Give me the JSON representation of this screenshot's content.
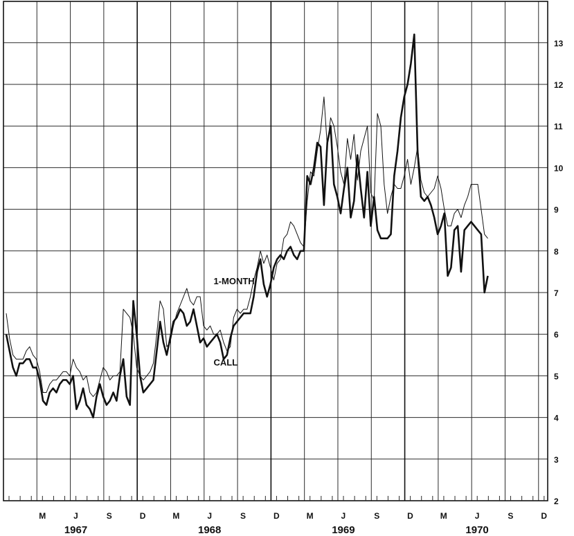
{
  "chart_data": {
    "type": "line",
    "title": "",
    "xlabel": "",
    "ylabel": "",
    "ylim": [
      2,
      13.5
    ],
    "y_ticks": [
      "2",
      "3",
      "4",
      "5",
      "6",
      "7",
      "8",
      "9",
      "10",
      "11",
      "12",
      "13"
    ],
    "x_range_month_index": [
      0,
      46
    ],
    "x_tick_labels": [
      {
        "label": "M",
        "month": 2
      },
      {
        "label": "J",
        "month": 5
      },
      {
        "label": "S",
        "month": 8
      },
      {
        "label": "D",
        "month": 11
      },
      {
        "label": "M",
        "month": 14
      },
      {
        "label": "J",
        "month": 17
      },
      {
        "label": "S",
        "month": 20
      },
      {
        "label": "D",
        "month": 23
      },
      {
        "label": "M",
        "month": 26
      },
      {
        "label": "J",
        "month": 29
      },
      {
        "label": "S",
        "month": 32
      },
      {
        "label": "D",
        "month": 35
      },
      {
        "label": "M",
        "month": 38
      },
      {
        "label": "J",
        "month": 41
      },
      {
        "label": "S",
        "month": 44
      },
      {
        "label": "D",
        "month": 47
      }
    ],
    "year_labels": [
      {
        "label": "1967",
        "month": 5
      },
      {
        "label": "1968",
        "month": 17
      },
      {
        "label": "1969",
        "month": 29
      },
      {
        "label": "1970",
        "month": 41
      }
    ],
    "year_boundaries": [
      12,
      24,
      36
    ],
    "grid": true,
    "annotations": [
      {
        "text": "1-MONTH",
        "month": 18.6,
        "y": 7.2
      },
      {
        "text": "CALL",
        "month": 18.6,
        "y": 5.25
      }
    ],
    "series": [
      {
        "name": "1-MONTH",
        "x": [
          0,
          0.3,
          0.6,
          0.9,
          1.2,
          1.5,
          1.8,
          2.1,
          2.4,
          2.7,
          3.0,
          3.3,
          3.6,
          3.9,
          4.2,
          4.5,
          4.8,
          5.1,
          5.4,
          5.7,
          6.0,
          6.3,
          6.6,
          6.9,
          7.2,
          7.5,
          7.8,
          8.1,
          8.4,
          8.7,
          9.0,
          9.3,
          9.6,
          9.9,
          10.2,
          10.5,
          10.8,
          11.1,
          11.4,
          11.7,
          12.0,
          12.3,
          12.6,
          12.9,
          13.2,
          13.5,
          13.8,
          14.1,
          14.4,
          14.7,
          15.0,
          15.3,
          15.6,
          15.9,
          16.2,
          16.5,
          16.8,
          17.1,
          17.4,
          17.7,
          18.0,
          18.3,
          18.6,
          18.9,
          19.2,
          19.5,
          19.8,
          20.1,
          20.4,
          20.7,
          21.0,
          21.3,
          21.6,
          21.9,
          22.2,
          22.5,
          22.8,
          23.1,
          23.4,
          23.7,
          24.0,
          24.3,
          24.6,
          24.9,
          25.2,
          25.5,
          25.8,
          26.1,
          26.4,
          26.7,
          27.0,
          27.3,
          27.6,
          27.9,
          28.2,
          28.5,
          28.8,
          29.1,
          29.4,
          29.7,
          30.0,
          30.3,
          30.6,
          30.9,
          31.2,
          31.5,
          31.8,
          32.1,
          32.4,
          32.7,
          33.0,
          33.3,
          33.6,
          33.9,
          34.2,
          34.5,
          34.8,
          35.1,
          35.4,
          35.7,
          36.0,
          36.3,
          36.6,
          36.9,
          37.2,
          37.5,
          37.8,
          38.1,
          38.4,
          38.7,
          39.0,
          39.3,
          39.6,
          39.9,
          40.2,
          40.5,
          40.8,
          41.1,
          41.4,
          41.7,
          42.0,
          42.3,
          42.6,
          42.9,
          43.2
        ],
        "values": [
          6.5,
          5.9,
          5.5,
          5.4,
          5.4,
          5.4,
          5.6,
          5.7,
          5.5,
          5.4,
          5.1,
          4.6,
          4.6,
          4.8,
          4.9,
          4.9,
          5.0,
          5.1,
          5.1,
          5.0,
          5.4,
          5.2,
          5.1,
          4.9,
          5.0,
          4.6,
          4.5,
          4.6,
          4.9,
          5.2,
          5.1,
          4.9,
          5.0,
          5.0,
          5.1,
          6.6,
          6.5,
          6.4,
          6.0,
          5.2,
          5.0,
          4.9,
          5.0,
          5.1,
          5.3,
          6.0,
          6.8,
          6.6,
          5.7,
          5.8,
          6.2,
          6.5,
          6.7,
          6.9,
          7.1,
          6.8,
          6.7,
          6.9,
          6.9,
          6.2,
          6.1,
          6.2,
          6.0,
          6.0,
          6.1,
          5.8,
          5.6,
          5.7,
          6.4,
          6.6,
          6.5,
          6.6,
          6.6,
          6.9,
          7.3,
          7.6,
          8.0,
          7.7,
          7.9,
          7.6,
          7.3,
          7.7,
          7.8,
          8.3,
          8.4,
          8.7,
          8.6,
          8.4,
          8.2,
          8.1,
          9.2,
          9.9,
          9.8,
          10.4,
          10.9,
          11.7,
          10.5,
          11.2,
          11.0,
          10.5,
          9.9,
          9.6,
          10.7,
          10.2,
          10.8,
          9.7,
          10.4,
          10.7,
          11.0,
          9.4,
          9.2,
          11.3,
          11.0,
          9.6,
          8.9,
          9.3,
          9.6,
          9.5,
          9.5,
          9.8,
          10.2,
          9.6,
          10.0,
          10.5,
          9.7,
          9.4,
          9.3,
          9.4,
          9.5,
          9.8,
          9.5,
          9.0,
          8.6,
          8.6,
          8.9,
          9.0,
          8.8,
          9.1,
          9.3,
          9.6,
          9.6,
          9.6,
          9.0,
          8.4,
          8.3
        ],
        "style": "thin"
      },
      {
        "name": "CALL",
        "x": [
          0,
          0.3,
          0.6,
          0.9,
          1.2,
          1.5,
          1.8,
          2.1,
          2.4,
          2.7,
          3.0,
          3.3,
          3.6,
          3.9,
          4.2,
          4.5,
          4.8,
          5.1,
          5.4,
          5.7,
          6.0,
          6.3,
          6.6,
          6.9,
          7.2,
          7.5,
          7.8,
          8.1,
          8.4,
          8.7,
          9.0,
          9.3,
          9.6,
          9.9,
          10.2,
          10.5,
          10.8,
          11.1,
          11.4,
          11.7,
          12.0,
          12.3,
          12.6,
          12.9,
          13.2,
          13.5,
          13.8,
          14.1,
          14.4,
          14.7,
          15.0,
          15.3,
          15.6,
          15.9,
          16.2,
          16.5,
          16.8,
          17.1,
          17.4,
          17.7,
          18.0,
          18.3,
          18.6,
          18.9,
          19.2,
          19.5,
          19.8,
          20.1,
          20.4,
          20.7,
          21.0,
          21.3,
          21.6,
          21.9,
          22.2,
          22.5,
          22.8,
          23.1,
          23.4,
          23.7,
          24.0,
          24.3,
          24.6,
          24.9,
          25.2,
          25.5,
          25.8,
          26.1,
          26.4,
          26.7,
          27.0,
          27.3,
          27.6,
          27.9,
          28.2,
          28.5,
          28.8,
          29.1,
          29.4,
          29.7,
          30.0,
          30.3,
          30.6,
          30.9,
          31.2,
          31.5,
          31.8,
          32.1,
          32.4,
          32.7,
          33.0,
          33.3,
          33.6,
          33.9,
          34.2,
          34.5,
          34.8,
          35.1,
          35.4,
          35.7,
          36.0,
          36.3,
          36.6,
          36.9,
          37.2,
          37.5,
          37.8,
          38.1,
          38.4,
          38.7,
          39.0,
          39.3,
          39.6,
          39.9,
          40.2,
          40.5,
          40.8,
          41.1,
          41.4,
          41.7,
          42.0,
          42.3,
          42.6,
          42.9,
          43.2
        ],
        "values": [
          6.0,
          5.6,
          5.2,
          5.0,
          5.3,
          5.3,
          5.4,
          5.4,
          5.2,
          5.2,
          4.9,
          4.4,
          4.3,
          4.6,
          4.7,
          4.6,
          4.8,
          4.9,
          4.9,
          4.8,
          5.0,
          4.2,
          4.4,
          4.7,
          4.3,
          4.2,
          4.0,
          4.5,
          4.8,
          4.5,
          4.3,
          4.4,
          4.6,
          4.4,
          5.0,
          5.4,
          4.5,
          4.3,
          6.8,
          6.0,
          5.0,
          4.6,
          4.7,
          4.8,
          4.9,
          5.6,
          6.3,
          5.8,
          5.5,
          5.9,
          6.3,
          6.4,
          6.6,
          6.5,
          6.2,
          6.3,
          6.6,
          6.2,
          5.8,
          5.9,
          5.7,
          5.8,
          5.9,
          6.0,
          5.8,
          5.4,
          5.5,
          5.9,
          6.2,
          6.3,
          6.4,
          6.5,
          6.5,
          6.5,
          6.9,
          7.5,
          7.8,
          7.2,
          6.9,
          7.2,
          7.6,
          7.8,
          7.9,
          7.8,
          8.0,
          8.1,
          7.9,
          7.8,
          8.0,
          8.0,
          9.8,
          9.6,
          10.0,
          10.6,
          10.5,
          9.1,
          10.6,
          11.0,
          9.6,
          9.3,
          8.9,
          9.5,
          10.0,
          8.8,
          9.2,
          10.3,
          9.5,
          8.8,
          9.9,
          8.6,
          9.3,
          8.5,
          8.3,
          8.3,
          8.3,
          8.4,
          9.8,
          10.4,
          11.2,
          11.7,
          12.0,
          12.5,
          13.2,
          10.4,
          9.3,
          9.2,
          9.3,
          9.1,
          8.8,
          8.4,
          8.6,
          8.9,
          7.4,
          7.6,
          8.5,
          8.6,
          7.5,
          8.5,
          8.6,
          8.7,
          8.6,
          8.5,
          8.4,
          7.0,
          7.4
        ],
        "style": "thick"
      }
    ]
  }
}
